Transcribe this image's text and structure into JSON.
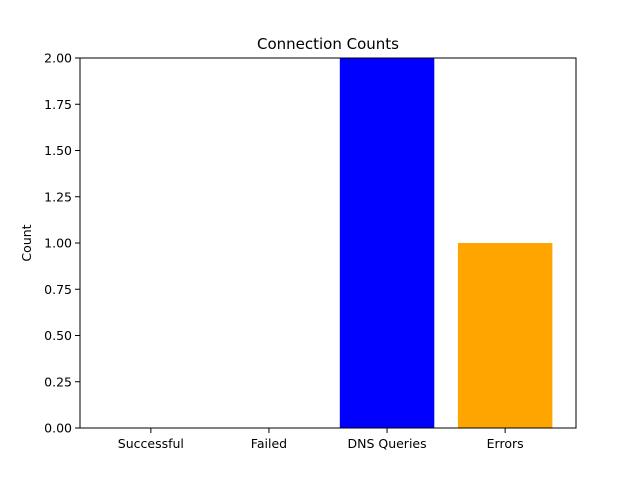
{
  "chart_data": {
    "type": "bar",
    "title": "Connection Counts",
    "xlabel": "",
    "ylabel": "Count",
    "categories": [
      "Successful",
      "Failed",
      "DNS Queries",
      "Errors"
    ],
    "values": [
      0,
      0,
      2,
      1
    ],
    "colors": [
      "#0000ff",
      "#0000ff",
      "#0000ff",
      "#ffa500"
    ],
    "ylim": [
      0,
      2
    ],
    "yticks": [
      "0.00",
      "0.25",
      "0.50",
      "0.75",
      "1.00",
      "1.25",
      "1.50",
      "1.75",
      "2.00"
    ],
    "grid": false,
    "legend": "none"
  }
}
